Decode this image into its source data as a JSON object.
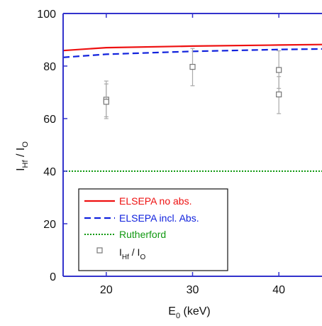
{
  "chart_data": {
    "type": "line",
    "xlabel": "E",
    "xlabel_sub": "0",
    "xlabel_unit": " (keV)",
    "ylabel": "I",
    "ylabel_sub1": "Hf",
    "ylabel_slash": " / I",
    "ylabel_sub2": "O",
    "xlim": [
      15,
      45
    ],
    "ylim": [
      0,
      100
    ],
    "x_ticks": [
      20,
      30,
      40
    ],
    "y_ticks": [
      0,
      20,
      40,
      60,
      80,
      100
    ],
    "x_tick_labels": [
      "20",
      "30",
      "40"
    ],
    "y_tick_labels": [
      "0",
      "20",
      "40",
      "60",
      "80",
      "100"
    ],
    "grid": false,
    "axis_color": "#3333cc",
    "series": [
      {
        "name": "ELSEPA no abs.",
        "style": "solid",
        "color": "#ee1111",
        "x": [
          15,
          20,
          30,
          40,
          45
        ],
        "y": [
          85.9,
          87.0,
          87.6,
          88.0,
          88.2
        ]
      },
      {
        "name": "ELSEPA incl. Abs.",
        "style": "dashed",
        "color": "#1122dd",
        "x": [
          15,
          20,
          30,
          40,
          45
        ],
        "y": [
          83.3,
          84.5,
          85.6,
          86.3,
          86.5
        ]
      },
      {
        "name": "Rutherford",
        "style": "dotted",
        "color": "#119911",
        "x": [
          15,
          45
        ],
        "y": [
          40,
          40
        ]
      },
      {
        "name": "I",
        "name_sub1": "Hf",
        "name_slash": " / I",
        "name_sub2": "O",
        "style": "markers",
        "color": "#777777",
        "points": [
          {
            "x": 20,
            "y": 67.2,
            "err_low": 60.0,
            "err_high": 74.3
          },
          {
            "x": 20,
            "y": 66.4,
            "err_low": 60.7,
            "err_high": 73.2
          },
          {
            "x": 30,
            "y": 79.7,
            "err_low": 72.5,
            "err_high": 86.7
          },
          {
            "x": 40,
            "y": 78.5,
            "err_low": 71.5,
            "err_high": 85.8
          },
          {
            "x": 40,
            "y": 69.2,
            "err_low": 61.9,
            "err_high": 76.0
          }
        ]
      }
    ],
    "legend_position": "lower-left"
  }
}
